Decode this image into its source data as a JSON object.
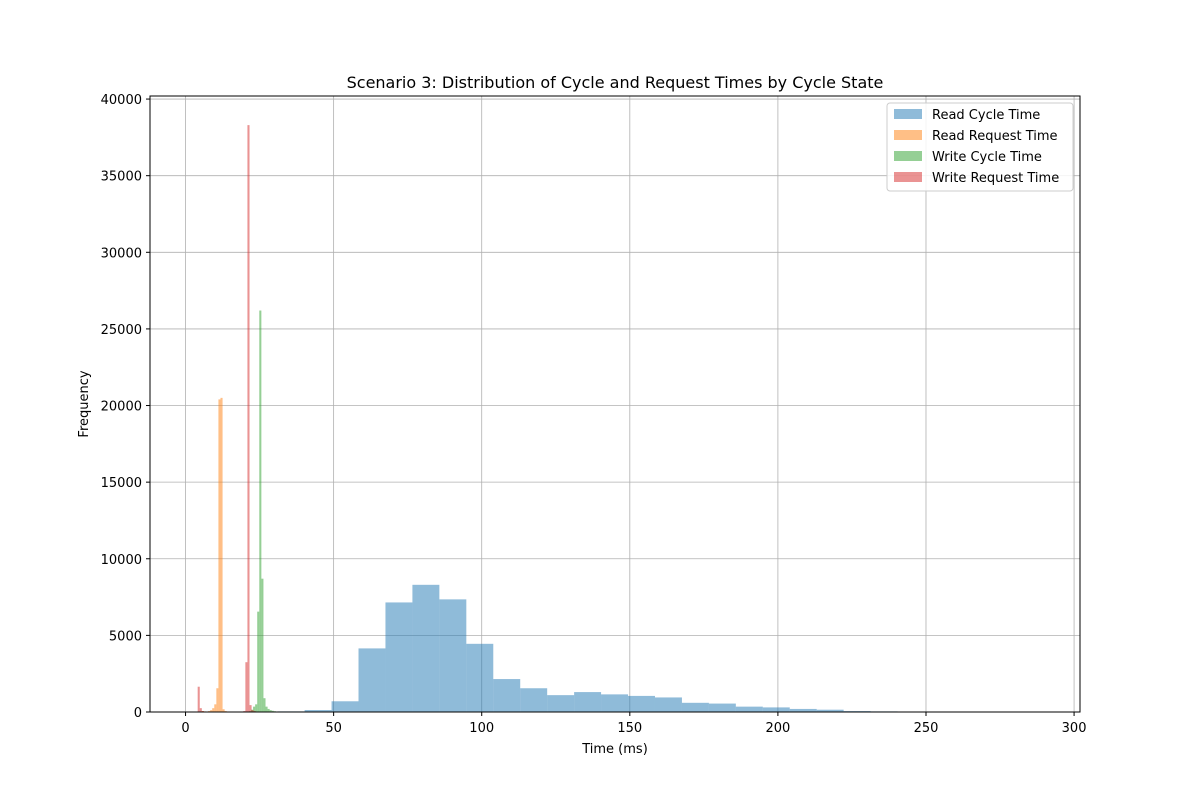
{
  "chart_data": {
    "type": "histogram",
    "title": "Scenario 3: Distribution of Cycle and Request Times by Cycle State",
    "xlabel": "Time (ms)",
    "ylabel": "Frequency",
    "xlim": [
      -12,
      302
    ],
    "ylim": [
      0,
      40200
    ],
    "xticks": [
      0,
      50,
      100,
      150,
      200,
      250,
      300
    ],
    "yticks": [
      0,
      5000,
      10000,
      15000,
      20000,
      25000,
      30000,
      35000,
      40000
    ],
    "grid": true,
    "legend_position": "top-right",
    "bar_alpha": 0.5,
    "series": [
      {
        "name": "Read Cycle Time",
        "color": "#1f77b4",
        "bin_edges": [
          22.0,
          31.1,
          40.2,
          49.3,
          58.4,
          67.5,
          76.6,
          85.7,
          94.8,
          103.9,
          113.0,
          122.1,
          131.2,
          140.3,
          149.4,
          158.5,
          167.6,
          176.7,
          185.8,
          194.9,
          204.0,
          213.1,
          222.2,
          231.3,
          240.4,
          249.5,
          258.6,
          267.7,
          276.8,
          285.9,
          295.0
        ],
        "counts": [
          20,
          40,
          130,
          700,
          4150,
          7150,
          8300,
          7350,
          4450,
          2150,
          1550,
          1100,
          1300,
          1150,
          1050,
          950,
          600,
          550,
          350,
          300,
          200,
          150,
          60,
          40,
          30,
          20,
          15,
          10,
          5,
          5
        ]
      },
      {
        "name": "Read Request Time",
        "color": "#ff7f0e",
        "bin_edges": [
          5.5,
          6.2,
          6.9,
          7.6,
          8.3,
          9.0,
          9.7,
          10.4,
          11.1,
          11.8,
          12.5,
          13.2,
          13.9,
          14.6
        ],
        "counts": [
          60,
          40,
          20,
          60,
          120,
          250,
          500,
          1550,
          20400,
          20500,
          180,
          60,
          20
        ]
      },
      {
        "name": "Write Cycle Time",
        "color": "#2ca02c",
        "bin_edges": [
          21.4,
          22.1,
          22.8,
          23.5,
          24.2,
          24.9,
          25.6,
          26.3,
          27.0,
          27.7,
          28.4,
          29.1,
          29.8,
          30.5,
          31.2,
          31.9,
          32.6
        ],
        "counts": [
          50,
          150,
          350,
          500,
          6550,
          26200,
          8700,
          900,
          350,
          200,
          120,
          80,
          50,
          30,
          20,
          10
        ]
      },
      {
        "name": "Write Request Time",
        "color": "#d62728",
        "bin_edges": [
          4.1,
          4.8,
          5.5,
          6.2,
          6.9,
          7.6,
          8.3,
          9.0,
          9.7,
          10.4,
          11.1,
          11.8,
          12.5,
          13.2,
          13.9,
          14.6,
          15.3,
          16.0,
          16.7,
          17.4,
          18.1,
          18.8,
          19.5,
          20.2,
          20.9,
          21.6,
          22.3,
          23.0,
          23.7,
          24.4,
          25.1
        ],
        "counts": [
          1650,
          250,
          60,
          20,
          20,
          20,
          20,
          20,
          20,
          20,
          20,
          20,
          20,
          20,
          20,
          20,
          20,
          20,
          20,
          20,
          20,
          30,
          60,
          3250,
          38300,
          450,
          120,
          60,
          30,
          10
        ]
      }
    ]
  }
}
